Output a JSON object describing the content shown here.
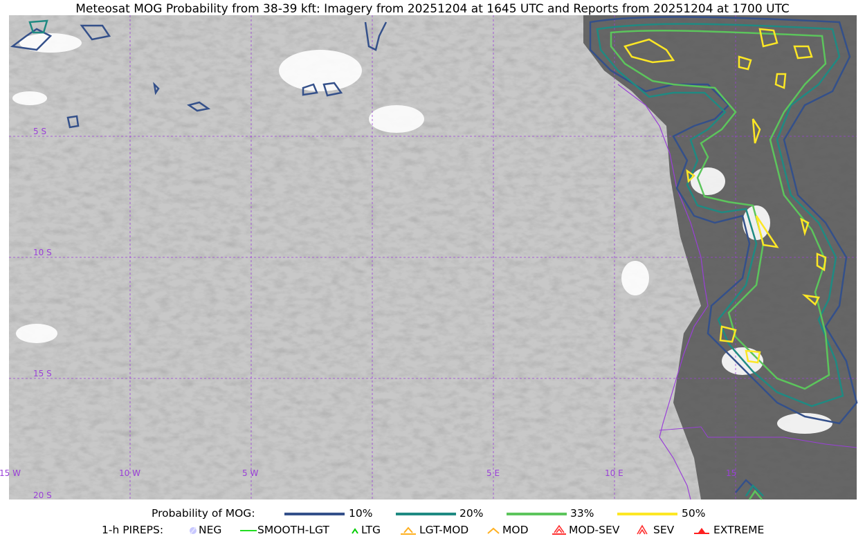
{
  "title": "Meteosat MOG Probability from 38-39 kft: Imagery from 20251204 at 1645 UTC and Reports from 20251204 at 1700 UTC",
  "map": {
    "longitude_labels": [
      "15 W",
      "10 W",
      "5 W",
      "5 E",
      "10 E",
      "15"
    ],
    "latitude_labels": [
      "5 S",
      "10 S",
      "15 S",
      "20 S"
    ],
    "gridline_color": "#9a40d8",
    "coastline_color": "#9a40d8"
  },
  "legend": {
    "probability_label": "Probability of MOG:",
    "levels": [
      {
        "label": "10%",
        "color": "#34508a"
      },
      {
        "label": "20%",
        "color": "#1f8a82"
      },
      {
        "label": "33%",
        "color": "#5cc55c"
      },
      {
        "label": "50%",
        "color": "#fde725"
      }
    ],
    "pireps_label": "1-h PIREPS:",
    "pireps": [
      {
        "label": "NEG",
        "icon": "neg-circle-icon",
        "color": "#c8c8ff"
      },
      {
        "label": "SMOOTH-LGT",
        "icon": "smooth-line-icon",
        "color": "#22dd22"
      },
      {
        "label": "LTG",
        "icon": "caret-icon",
        "color": "#00cc00"
      },
      {
        "label": "LGT-MOD",
        "icon": "caret-bar-icon",
        "color": "#ffb020"
      },
      {
        "label": "MOD",
        "icon": "caret-icon",
        "color": "#ffb020"
      },
      {
        "label": "MOD-SEV",
        "icon": "double-caret-bar-icon",
        "color": "#ff3030"
      },
      {
        "label": "SEV",
        "icon": "double-caret-icon",
        "color": "#ff3030"
      },
      {
        "label": "EXTREME",
        "icon": "filled-triangle-icon",
        "color": "#ff2020"
      }
    ]
  }
}
